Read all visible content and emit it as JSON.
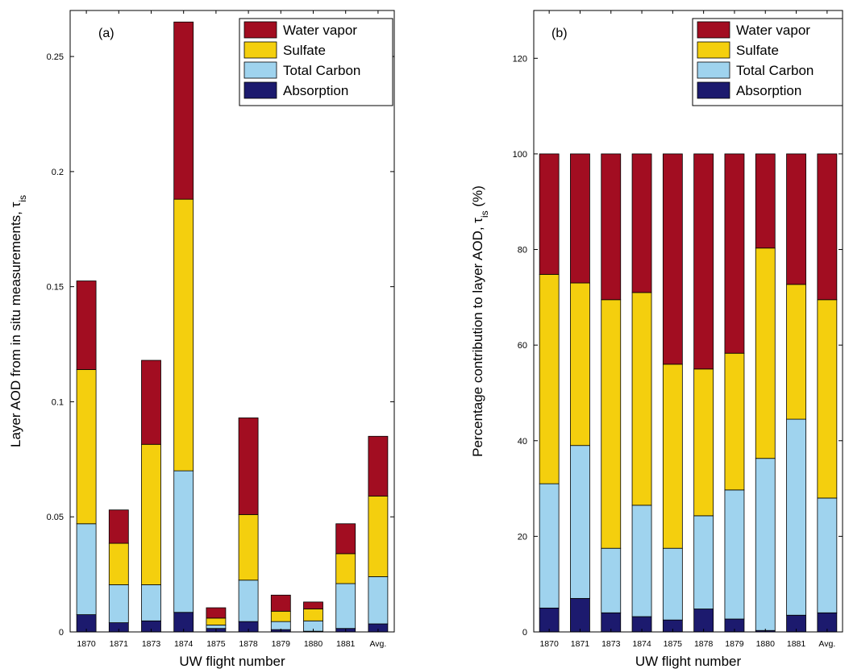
{
  "chart_data": [
    {
      "type": "bar",
      "stacked": true,
      "panel_label": "(a)",
      "xlabel": "UW flight number",
      "ylabel": "Layer AOD from in situ measurements, τ",
      "ylabel_sub": "is",
      "ylim": [
        0,
        0.27
      ],
      "yticks": [
        0,
        0.05,
        0.1,
        0.15,
        0.2,
        0.25
      ],
      "ytick_labels": [
        "0",
        "0.05",
        "0.1",
        "0.15",
        "0.2",
        "0.25"
      ],
      "legend_position": "top-right",
      "categories": [
        "1870",
        "1871",
        "1873",
        "1874",
        "1875",
        "1878",
        "1879",
        "1880",
        "1881",
        "Avg."
      ],
      "series": [
        {
          "name": "Absorption",
          "color": "#1c1a6e",
          "values": [
            0.0075,
            0.004,
            0.0048,
            0.0085,
            0.0015,
            0.0045,
            0.001,
            0.0003,
            0.0015,
            0.0035
          ]
        },
        {
          "name": "Total Carbon",
          "color": "#9fd3ee",
          "values": [
            0.0395,
            0.0165,
            0.0157,
            0.0615,
            0.0015,
            0.018,
            0.0035,
            0.0045,
            0.0195,
            0.0205
          ]
        },
        {
          "name": "Sulfate",
          "color": "#f4cf0e",
          "values": [
            0.067,
            0.018,
            0.061,
            0.118,
            0.003,
            0.0285,
            0.0045,
            0.0052,
            0.013,
            0.035
          ]
        },
        {
          "name": "Water vapor",
          "color": "#a20d21",
          "values": [
            0.0385,
            0.0145,
            0.0365,
            0.077,
            0.0045,
            0.042,
            0.007,
            0.003,
            0.013,
            0.026
          ]
        }
      ]
    },
    {
      "type": "bar",
      "stacked": true,
      "panel_label": "(b)",
      "xlabel": "UW flight number",
      "ylabel": "Percentage contribution to layer AOD, τ",
      "ylabel_sub": "is",
      "ylabel_suffix": " (%)",
      "ylim": [
        0,
        130
      ],
      "yticks": [
        0,
        20,
        40,
        60,
        80,
        100,
        120
      ],
      "ytick_labels": [
        "0",
        "20",
        "40",
        "60",
        "80",
        "100",
        "120"
      ],
      "legend_position": "top-right",
      "categories": [
        "1870",
        "1871",
        "1873",
        "1874",
        "1875",
        "1878",
        "1879",
        "1880",
        "1881",
        "Avg."
      ],
      "series": [
        {
          "name": "Absorption",
          "color": "#1c1a6e",
          "values": [
            5,
            7,
            4,
            3.2,
            2.5,
            4.8,
            2.7,
            0.3,
            3.5,
            4
          ]
        },
        {
          "name": "Total Carbon",
          "color": "#9fd3ee",
          "values": [
            26,
            32,
            13.5,
            23.3,
            15,
            19.5,
            27,
            36,
            41,
            24
          ]
        },
        {
          "name": "Sulfate",
          "color": "#f4cf0e",
          "values": [
            43.8,
            34,
            52,
            44.5,
            38.5,
            30.7,
            28.6,
            44,
            28.2,
            41.5
          ]
        },
        {
          "name": "Water vapor",
          "color": "#a20d21",
          "values": [
            25.2,
            27,
            30.5,
            29,
            44,
            45,
            41.7,
            19.7,
            27.3,
            30.5
          ]
        }
      ]
    }
  ]
}
